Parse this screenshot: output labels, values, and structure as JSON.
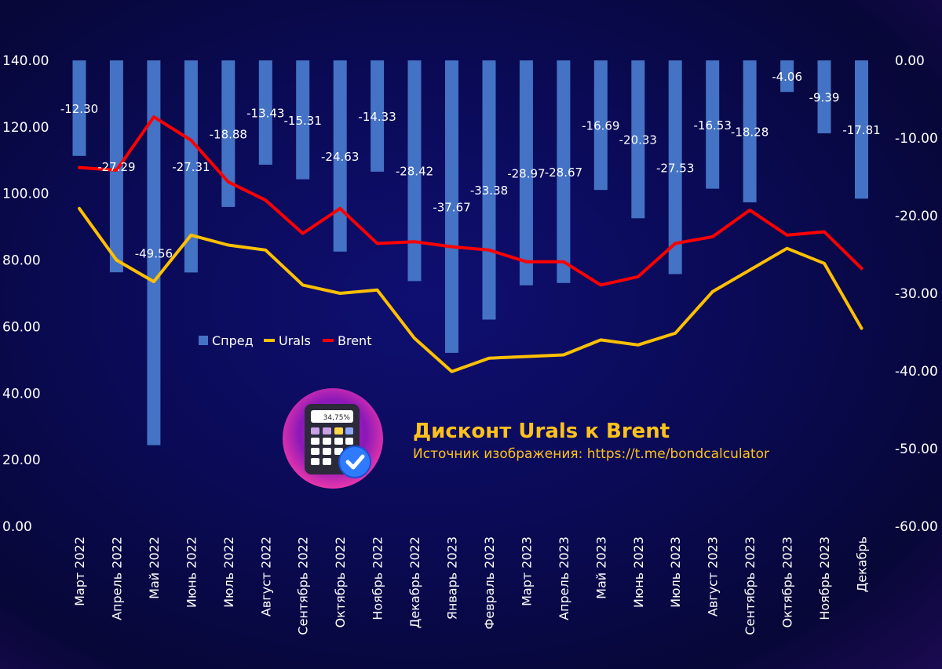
{
  "title": "Дисконт Urals к Brent",
  "source": "Источник изображения: https://t.me/bondcalculator",
  "logo": {
    "icon": "calculator-verified-icon",
    "display_text": "34,75%"
  },
  "colors": {
    "spread": "#4472c4",
    "urals": "#ffc000",
    "brent": "#ff0000"
  },
  "chart_data": {
    "type": "bar+line",
    "categories": [
      "Март 2022",
      "Апрель 2022",
      "Май 2022",
      "Июнь 2022",
      "Июль 2022",
      "Август 2022",
      "Сентябрь 2022",
      "Октябрь 2022",
      "Ноябрь 2022",
      "Декабрь 2022",
      "Январь 2023",
      "Февраль 2023",
      "Март 2023",
      "Апрель 2023",
      "Май 2023",
      "Июнь 2023",
      "Июль 2023",
      "Август 2023",
      "Сентябрь 2023",
      "Октябрь 2023",
      "Ноябрь 2023",
      "Декабрь"
    ],
    "series": [
      {
        "name": "Спред",
        "type": "bar",
        "axis": "right",
        "values": [
          -12.3,
          -27.29,
          -49.56,
          -27.31,
          -18.88,
          -13.43,
          -15.31,
          -24.63,
          -14.33,
          -28.42,
          -37.67,
          -33.38,
          -28.97,
          -28.67,
          -16.69,
          -20.33,
          -27.53,
          -16.53,
          -18.28,
          -4.06,
          -9.39,
          -17.81
        ],
        "labels": [
          "-12.30",
          "-27.29",
          "-49.56",
          "-27.31",
          "-18.88",
          "-13.43",
          "-15.31",
          "-24.63",
          "-14.33",
          "-28.42",
          "-37.67",
          "-33.38",
          "-28.97",
          "-28.67",
          "-16.69",
          "-20.33",
          "-27.53",
          "-16.53",
          "-18.28",
          "-4.06",
          "-9.39",
          "-17.81"
        ]
      },
      {
        "name": "Urals",
        "type": "line",
        "axis": "left",
        "values": [
          95.5,
          80.0,
          73.5,
          87.5,
          84.5,
          83.0,
          72.5,
          70.0,
          71.0,
          56.5,
          46.5,
          50.5,
          51.0,
          51.5,
          56.0,
          54.5,
          58.0,
          70.5,
          77.0,
          83.5,
          79.0,
          59.5
        ]
      },
      {
        "name": "Brent",
        "type": "line",
        "axis": "left",
        "values": [
          107.8,
          107.0,
          123.0,
          116.0,
          103.5,
          98.0,
          88.0,
          95.5,
          85.0,
          85.5,
          84.0,
          83.0,
          79.5,
          79.5,
          72.5,
          75.0,
          85.0,
          87.0,
          95.0,
          87.5,
          88.5,
          77.5
        ]
      }
    ],
    "y_left": {
      "min": 0,
      "max": 140,
      "ticks": [
        "140.00",
        "120.00",
        "100.00",
        "80.00",
        "60.00",
        "40.00",
        "20.00",
        "0.00"
      ]
    },
    "y_right": {
      "min": -60,
      "max": 0,
      "ticks": [
        "0.00",
        "-10.00",
        "-20.00",
        "-30.00",
        "-40.00",
        "-50.00",
        "-60.00"
      ]
    },
    "legend": {
      "position": "inside-left",
      "items": [
        "Спред",
        "Urals",
        "Brent"
      ]
    },
    "grid": false
  }
}
